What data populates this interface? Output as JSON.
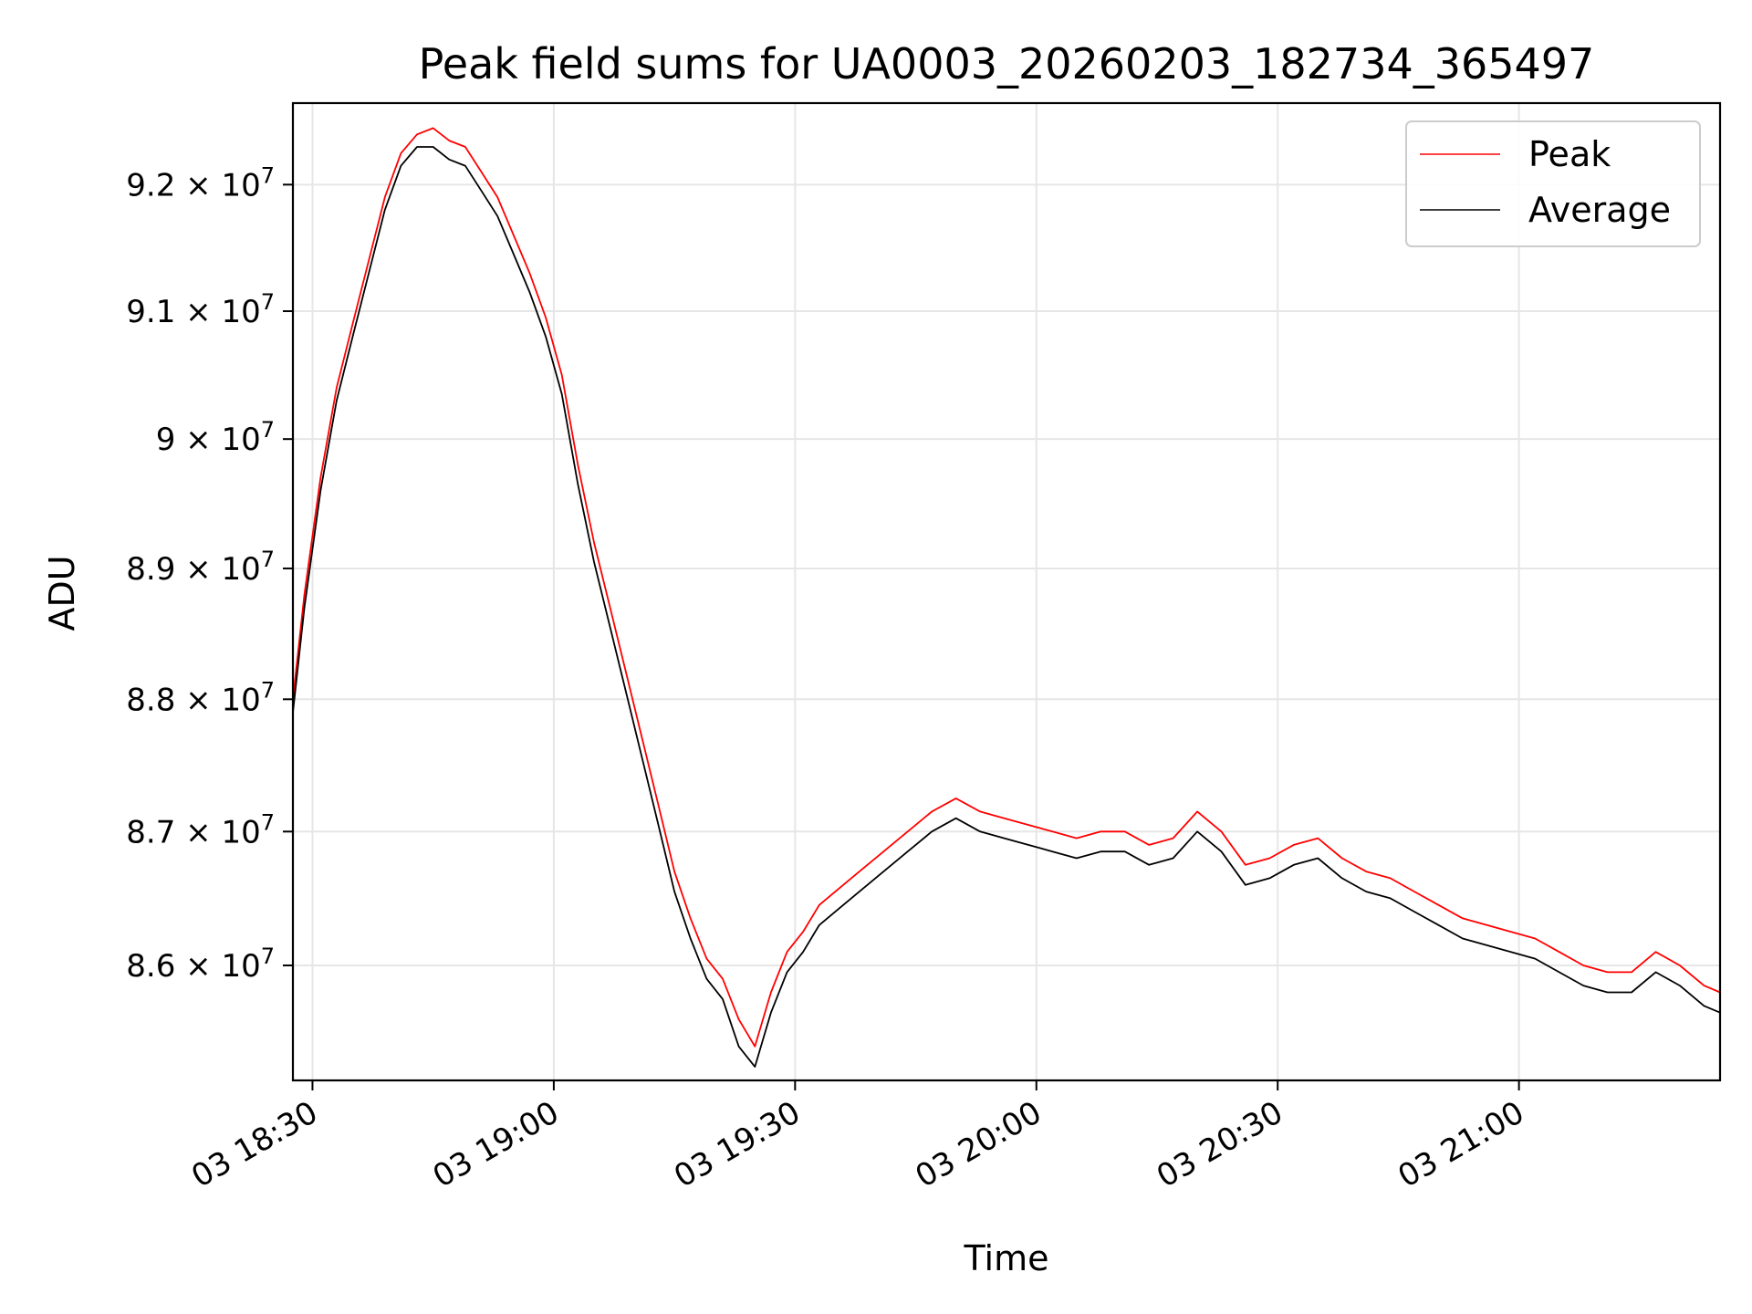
{
  "chart_data": {
    "type": "line",
    "title": "Peak field sums for UA0003_20260203_182734_365497",
    "xlabel": "Time",
    "ylabel": "ADU",
    "x_unit": "time of day (HH:MM), date 03",
    "xlim": [
      "18:27:34",
      "21:25"
    ],
    "ylim": [
      85150000,
      92650000
    ],
    "y_scale": "log",
    "grid": true,
    "legend_position": "top-right",
    "x_ticks": [
      "03 18:30",
      "03 19:00",
      "03 19:30",
      "03 20:00",
      "03 20:30",
      "03 21:00"
    ],
    "y_ticks": [
      {
        "value": 86000000,
        "mantissa": "8.6",
        "exponent": "7"
      },
      {
        "value": 87000000,
        "mantissa": "8.7",
        "exponent": "7"
      },
      {
        "value": 88000000,
        "mantissa": "8.8",
        "exponent": "7"
      },
      {
        "value": 89000000,
        "mantissa": "8.9",
        "exponent": "7"
      },
      {
        "value": 90000000,
        "mantissa": "9",
        "exponent": "7"
      },
      {
        "value": 91000000,
        "mantissa": "9.1",
        "exponent": "7"
      },
      {
        "value": 92000000,
        "mantissa": "9.2",
        "exponent": "7"
      }
    ],
    "series": [
      {
        "name": "Peak",
        "color": "#ff0000",
        "x": [
          "18:27:34",
          "18:29",
          "18:31",
          "18:33",
          "18:35",
          "18:37",
          "18:39",
          "18:41",
          "18:43",
          "18:45",
          "18:47",
          "18:49",
          "18:51",
          "18:53",
          "18:55",
          "18:57",
          "18:59",
          "19:01",
          "19:03",
          "19:05",
          "19:07",
          "19:09",
          "19:11",
          "19:13",
          "19:15",
          "19:17",
          "19:19",
          "19:21",
          "19:23",
          "19:25",
          "19:27",
          "19:29",
          "19:31",
          "19:33",
          "19:35",
          "19:38",
          "19:41",
          "19:44",
          "19:47",
          "19:50",
          "19:53",
          "19:56",
          "19:59",
          "20:02",
          "20:05",
          "20:08",
          "20:11",
          "20:14",
          "20:17",
          "20:20",
          "20:23",
          "20:26",
          "20:29",
          "20:32",
          "20:35",
          "20:38",
          "20:41",
          "20:44",
          "20:47",
          "20:50",
          "20:53",
          "20:56",
          "20:59",
          "21:02",
          "21:05",
          "21:08",
          "21:11",
          "21:14",
          "21:17",
          "21:20",
          "21:23",
          "21:25"
        ],
        "y": [
          88000000,
          88800000,
          89700000,
          90400000,
          90900000,
          91400000,
          91900000,
          92250000,
          92400000,
          92450000,
          92350000,
          92300000,
          92100000,
          91900000,
          91600000,
          91300000,
          90950000,
          90500000,
          89800000,
          89200000,
          88700000,
          88200000,
          87700000,
          87200000,
          86700000,
          86350000,
          86050000,
          85900000,
          85600000,
          85400000,
          85800000,
          86100000,
          86250000,
          86450000,
          86550000,
          86700000,
          86850000,
          87000000,
          87150000,
          87250000,
          87150000,
          87100000,
          87050000,
          87000000,
          86950000,
          87000000,
          87000000,
          86900000,
          86950000,
          87150000,
          87000000,
          86750000,
          86800000,
          86900000,
          86950000,
          86800000,
          86700000,
          86650000,
          86550000,
          86450000,
          86350000,
          86300000,
          86250000,
          86200000,
          86100000,
          86000000,
          85950000,
          85950000,
          86100000,
          86000000,
          85850000,
          85800000
        ]
      },
      {
        "name": "Average",
        "color": "#000000",
        "x": [
          "18:27:34",
          "18:29",
          "18:31",
          "18:33",
          "18:35",
          "18:37",
          "18:39",
          "18:41",
          "18:43",
          "18:45",
          "18:47",
          "18:49",
          "18:51",
          "18:53",
          "18:55",
          "18:57",
          "18:59",
          "19:01",
          "19:03",
          "19:05",
          "19:07",
          "19:09",
          "19:11",
          "19:13",
          "19:15",
          "19:17",
          "19:19",
          "19:21",
          "19:23",
          "19:25",
          "19:27",
          "19:29",
          "19:31",
          "19:33",
          "19:35",
          "19:38",
          "19:41",
          "19:44",
          "19:47",
          "19:50",
          "19:53",
          "19:56",
          "19:59",
          "20:02",
          "20:05",
          "20:08",
          "20:11",
          "20:14",
          "20:17",
          "20:20",
          "20:23",
          "20:26",
          "20:29",
          "20:32",
          "20:35",
          "20:38",
          "20:41",
          "20:44",
          "20:47",
          "20:50",
          "20:53",
          "20:56",
          "20:59",
          "21:02",
          "21:05",
          "21:08",
          "21:11",
          "21:14",
          "21:17",
          "21:20",
          "21:23",
          "21:25"
        ],
        "y": [
          87900000,
          88700000,
          89600000,
          90300000,
          90800000,
          91300000,
          91800000,
          92150000,
          92300000,
          92300000,
          92200000,
          92150000,
          91950000,
          91750000,
          91450000,
          91150000,
          90800000,
          90350000,
          89650000,
          89050000,
          88550000,
          88050000,
          87550000,
          87050000,
          86550000,
          86200000,
          85900000,
          85750000,
          85400000,
          85250000,
          85650000,
          85950000,
          86100000,
          86300000,
          86400000,
          86550000,
          86700000,
          86850000,
          87000000,
          87100000,
          87000000,
          86950000,
          86900000,
          86850000,
          86800000,
          86850000,
          86850000,
          86750000,
          86800000,
          87000000,
          86850000,
          86600000,
          86650000,
          86750000,
          86800000,
          86650000,
          86550000,
          86500000,
          86400000,
          86300000,
          86200000,
          86150000,
          86100000,
          86050000,
          85950000,
          85850000,
          85800000,
          85800000,
          85950000,
          85850000,
          85700000,
          85650000
        ]
      }
    ]
  }
}
